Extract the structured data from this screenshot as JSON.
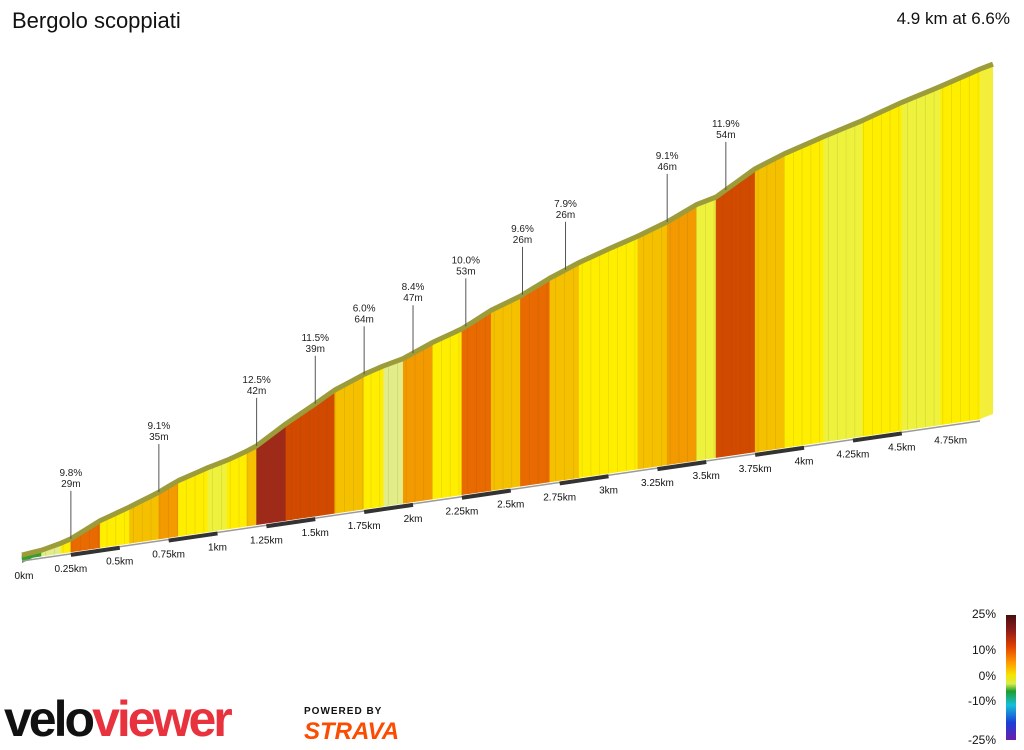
{
  "title": "Bergolo scoppiati",
  "summary": "4.9 km at 6.6%",
  "chart_data": {
    "type": "area",
    "title": "Bergolo scoppiati",
    "subtitle": "4.9 km at 6.6%",
    "x_unit": "km",
    "distance_ticks": [
      "0km",
      "0.25km",
      "0.5km",
      "0.75km",
      "1km",
      "1.25km",
      "1.5km",
      "1.75km",
      "2km",
      "2.25km",
      "2.5km",
      "2.75km",
      "3km",
      "3.25km",
      "3.5km",
      "3.75km",
      "4km",
      "4.25km",
      "4.5km",
      "4.75km"
    ],
    "total_distance_km": 4.9,
    "average_gradient_pct": 6.6,
    "xlim": [
      0,
      4.9
    ],
    "profile": [
      {
        "km": 0.0,
        "grade": 2.0
      },
      {
        "km": 0.1,
        "grade": 4.5
      },
      {
        "km": 0.2,
        "grade": 6.0
      },
      {
        "km": 0.25,
        "grade": 9.8
      },
      {
        "km": 0.4,
        "grade": 6.5
      },
      {
        "km": 0.55,
        "grade": 7.5
      },
      {
        "km": 0.7,
        "grade": 9.1
      },
      {
        "km": 0.8,
        "grade": 6.0
      },
      {
        "km": 0.95,
        "grade": 5.0
      },
      {
        "km": 1.05,
        "grade": 6.5
      },
      {
        "km": 1.15,
        "grade": 8.0
      },
      {
        "km": 1.2,
        "grade": 12.5
      },
      {
        "km": 1.35,
        "grade": 11.0
      },
      {
        "km": 1.5,
        "grade": 11.5
      },
      {
        "km": 1.6,
        "grade": 8.0
      },
      {
        "km": 1.75,
        "grade": 6.0
      },
      {
        "km": 1.85,
        "grade": 4.5
      },
      {
        "km": 1.95,
        "grade": 8.4
      },
      {
        "km": 2.1,
        "grade": 6.5
      },
      {
        "km": 2.25,
        "grade": 10.0
      },
      {
        "km": 2.4,
        "grade": 7.0
      },
      {
        "km": 2.55,
        "grade": 9.6
      },
      {
        "km": 2.7,
        "grade": 7.9
      },
      {
        "km": 2.85,
        "grade": 6.5
      },
      {
        "km": 3.0,
        "grade": 6.0
      },
      {
        "km": 3.15,
        "grade": 7.0
      },
      {
        "km": 3.3,
        "grade": 9.1
      },
      {
        "km": 3.45,
        "grade": 5.0
      },
      {
        "km": 3.55,
        "grade": 11.9
      },
      {
        "km": 3.75,
        "grade": 7.5
      },
      {
        "km": 3.9,
        "grade": 6.0
      },
      {
        "km": 4.1,
        "grade": 5.5
      },
      {
        "km": 4.3,
        "grade": 6.5
      },
      {
        "km": 4.5,
        "grade": 5.5
      },
      {
        "km": 4.7,
        "grade": 6.0
      },
      {
        "km": 4.9,
        "grade": 6.0
      }
    ],
    "annotations": [
      {
        "km": 0.25,
        "grade": "9.8%",
        "length": "29m"
      },
      {
        "km": 0.7,
        "grade": "9.1%",
        "length": "35m"
      },
      {
        "km": 1.2,
        "grade": "12.5%",
        "length": "42m"
      },
      {
        "km": 1.5,
        "grade": "11.5%",
        "length": "39m"
      },
      {
        "km": 1.75,
        "grade": "6.0%",
        "length": "64m"
      },
      {
        "km": 2.0,
        "grade": "8.4%",
        "length": "47m"
      },
      {
        "km": 2.27,
        "grade": "10.0%",
        "length": "53m"
      },
      {
        "km": 2.56,
        "grade": "9.6%",
        "length": "26m"
      },
      {
        "km": 2.78,
        "grade": "7.9%",
        "length": "26m"
      },
      {
        "km": 3.3,
        "grade": "9.1%",
        "length": "46m"
      },
      {
        "km": 3.6,
        "grade": "11.9%",
        "length": "54m"
      }
    ],
    "legend": {
      "labels": [
        "25%",
        "10%",
        "0%",
        "-10%",
        "-25%"
      ],
      "placement": "bottom-right",
      "colors": [
        "#4a0e0e",
        "#8b1a1a",
        "#e04000",
        "#ff9900",
        "#f5e400",
        "#d8ec4a",
        "#1e9e2e",
        "#17c0d8",
        "#1a3fd8",
        "#6a1fa8"
      ]
    },
    "grade_colors": {
      "green": "#3a9e2e",
      "pale": "#e2ec88",
      "light_yellow": "#eef23c",
      "yellow": "#ffee00",
      "amber": "#f5c000",
      "orange": "#f29a00",
      "deep_orange": "#e86a00",
      "red": "#d24a00",
      "dark_red": "#a02a1a"
    }
  },
  "brand": {
    "logo_part1": "velo",
    "logo_part2": "viewer",
    "powered_by": "POWERED BY",
    "strava": "STRAVA"
  }
}
